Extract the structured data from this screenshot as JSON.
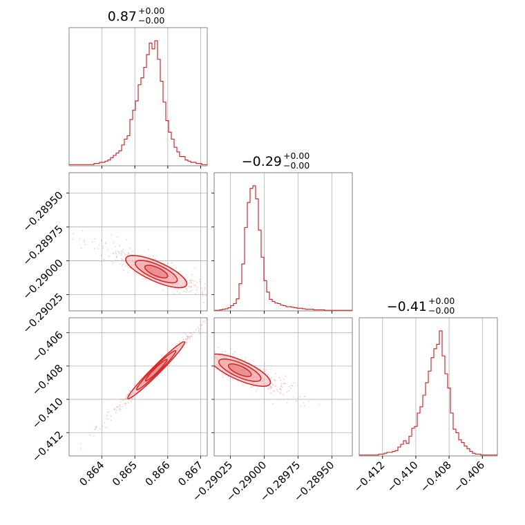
{
  "chart_data": {
    "type": "corner",
    "colors": {
      "line": "#d62728",
      "fill": "#f2b8b9",
      "scatter": "#e8898a",
      "grid": "#b0b0b0",
      "frame": "#808080"
    },
    "grid": true,
    "parameters": [
      {
        "id": "p0",
        "title_value": "0.87",
        "plus": "+0.00",
        "minus": "−0.00",
        "range": [
          0.863,
          0.8672
        ],
        "ticks": [
          0.864,
          0.865,
          0.866,
          0.867
        ],
        "tick_labels": [
          "0.864",
          "0.865",
          "0.866",
          "0.867"
        ]
      },
      {
        "id": "p1",
        "title_value": "−0.29",
        "plus": "+0.00",
        "minus": "−0.00",
        "range": [
          -0.29037,
          -0.28935
        ],
        "ticks": [
          -0.29025,
          -0.29,
          -0.28975,
          -0.2895
        ],
        "tick_labels": [
          "−0.29025",
          "−0.29000",
          "−0.28975",
          "−0.28950"
        ]
      },
      {
        "id": "p2",
        "title_value": "−0.41",
        "plus": "+0.00",
        "minus": "−0.00",
        "range": [
          -0.4134,
          -0.4051
        ],
        "ticks": [
          -0.412,
          -0.41,
          -0.408,
          -0.406
        ],
        "tick_labels": [
          "−0.412",
          "−0.410",
          "−0.408",
          "−0.406"
        ]
      }
    ],
    "histograms": [
      {
        "param": "p0",
        "counts": [
          1,
          1,
          1,
          1,
          1,
          1,
          1,
          1,
          1,
          2,
          2,
          3,
          3,
          4,
          5,
          7,
          9,
          11,
          13,
          18,
          23,
          26,
          40,
          48,
          56,
          70,
          76,
          85,
          96,
          106,
          101,
          108,
          92,
          73,
          55,
          39,
          29,
          23,
          16,
          12,
          8,
          8,
          5,
          4,
          3,
          3,
          2,
          2,
          1,
          1
        ]
      },
      {
        "param": "p1",
        "counts": [
          1,
          1,
          2,
          3,
          4,
          6,
          10,
          14,
          23,
          52,
          90,
          160,
          208,
          235,
          240,
          215,
          155,
          103,
          58,
          36,
          22,
          18,
          15,
          14,
          11,
          10,
          8,
          8,
          7,
          6,
          5,
          5,
          4,
          3,
          3,
          3,
          2,
          2,
          2,
          2,
          1,
          1,
          1,
          1,
          1,
          1,
          1,
          1,
          1,
          1
        ]
      },
      {
        "param": "p2",
        "counts": [
          1,
          1,
          1,
          1,
          1,
          1,
          1,
          2,
          2,
          3,
          4,
          4,
          5,
          6,
          10,
          13,
          17,
          14,
          22,
          31,
          33,
          48,
          55,
          68,
          82,
          95,
          110,
          120,
          125,
          140,
          112,
          92,
          76,
          48,
          30,
          26,
          18,
          15,
          11,
          8,
          5,
          3,
          2,
          2,
          1,
          1,
          1,
          1,
          1,
          1
        ]
      }
    ],
    "pairs": [
      {
        "x": "p0",
        "y": "p1",
        "center": [
          0.86565,
          -0.29008
        ],
        "corr": -0.86
      },
      {
        "x": "p0",
        "y": "p2",
        "center": [
          0.86565,
          -0.40825
        ],
        "corr": 0.995
      },
      {
        "x": "p1",
        "y": "p2",
        "center": [
          -0.29018,
          -0.40825
        ],
        "corr": -0.88
      }
    ]
  }
}
